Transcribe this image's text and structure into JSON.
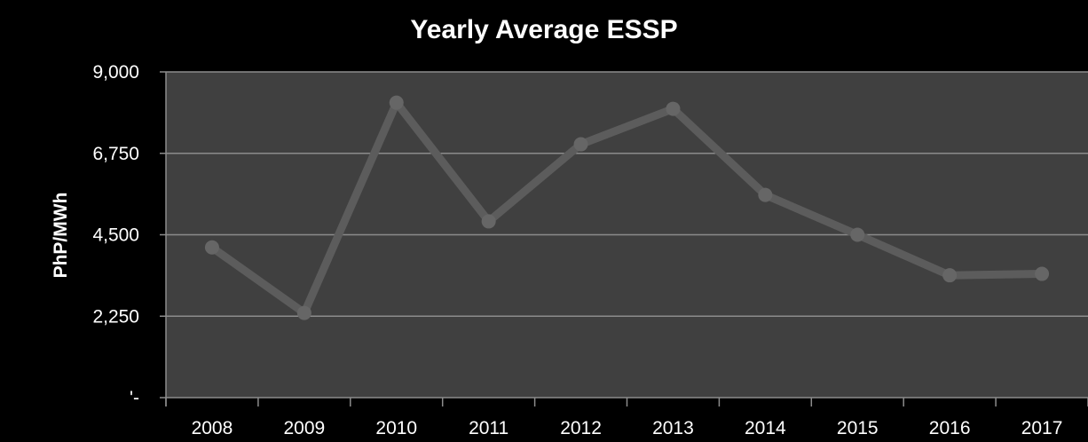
{
  "chart_data": {
    "type": "line",
    "title": "Yearly Average ESSP",
    "xlabel": "",
    "ylabel": "PhP/MWh",
    "categories": [
      "2008",
      "2009",
      "2010",
      "2011",
      "2012",
      "2013",
      "2014",
      "2015",
      "2016",
      "2017"
    ],
    "series": [
      {
        "values": [
          4150,
          2340,
          8150,
          4870,
          7000,
          7980,
          5600,
          4500,
          3380,
          3420
        ]
      }
    ],
    "ylim": [
      0,
      9000
    ],
    "yticks": [
      0,
      2250,
      4500,
      6750,
      9000
    ],
    "ytick_labels": [
      "'-",
      "2,250",
      "4,500",
      "6,750",
      "9,000"
    ],
    "grid": true,
    "legend": "none",
    "colors": {
      "background": "#000000",
      "plot_area": "#404040",
      "gridline": "#8c8c8c",
      "line": "#5c5c5c",
      "marker": "#666666",
      "axis": "#8c8c8c",
      "text": "#ffffff"
    }
  }
}
